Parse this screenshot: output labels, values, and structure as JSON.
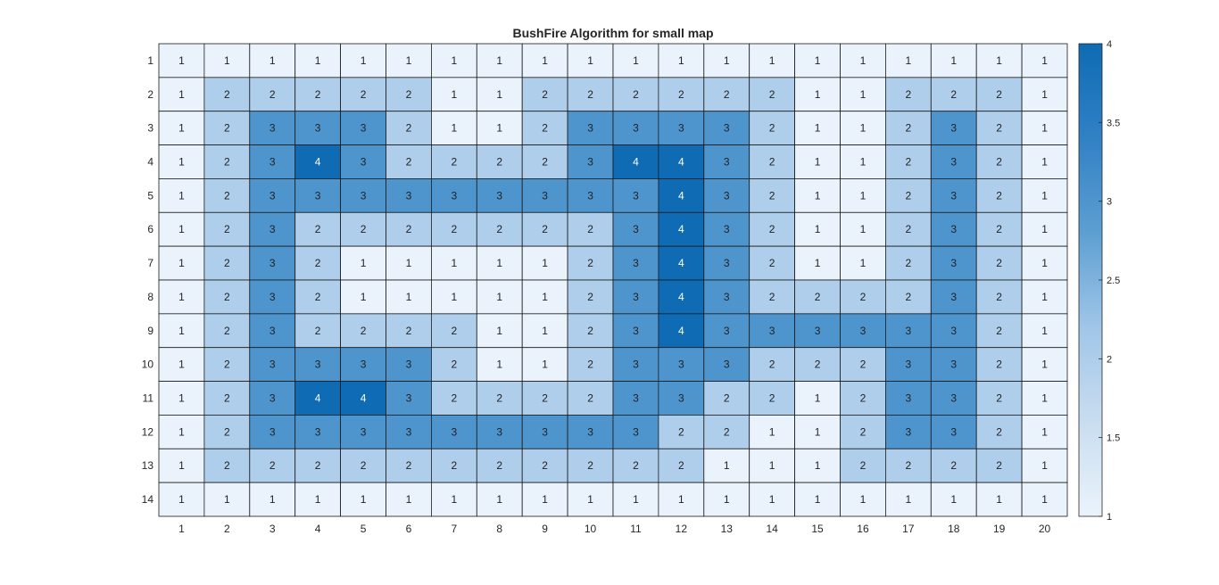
{
  "chart_data": {
    "type": "heatmap",
    "title": "BushFire Algorithm for small map",
    "xlabel": "",
    "ylabel": "",
    "x_categories": [
      "1",
      "2",
      "3",
      "4",
      "5",
      "6",
      "7",
      "8",
      "9",
      "10",
      "11",
      "12",
      "13",
      "14",
      "15",
      "16",
      "17",
      "18",
      "19",
      "20"
    ],
    "y_categories": [
      "1",
      "2",
      "3",
      "4",
      "5",
      "6",
      "7",
      "8",
      "9",
      "10",
      "11",
      "12",
      "13",
      "14"
    ],
    "values": [
      [
        1,
        1,
        1,
        1,
        1,
        1,
        1,
        1,
        1,
        1,
        1,
        1,
        1,
        1,
        1,
        1,
        1,
        1,
        1,
        1
      ],
      [
        1,
        2,
        2,
        2,
        2,
        2,
        1,
        1,
        2,
        2,
        2,
        2,
        2,
        2,
        1,
        1,
        2,
        2,
        2,
        1
      ],
      [
        1,
        2,
        3,
        3,
        3,
        2,
        1,
        1,
        2,
        3,
        3,
        3,
        3,
        2,
        1,
        1,
        2,
        3,
        2,
        1
      ],
      [
        1,
        2,
        3,
        4,
        3,
        2,
        2,
        2,
        2,
        3,
        4,
        4,
        3,
        2,
        1,
        1,
        2,
        3,
        2,
        1
      ],
      [
        1,
        2,
        3,
        3,
        3,
        3,
        3,
        3,
        3,
        3,
        3,
        4,
        3,
        2,
        1,
        1,
        2,
        3,
        2,
        1
      ],
      [
        1,
        2,
        3,
        2,
        2,
        2,
        2,
        2,
        2,
        2,
        3,
        4,
        3,
        2,
        1,
        1,
        2,
        3,
        2,
        1
      ],
      [
        1,
        2,
        3,
        2,
        1,
        1,
        1,
        1,
        1,
        2,
        3,
        4,
        3,
        2,
        1,
        1,
        2,
        3,
        2,
        1
      ],
      [
        1,
        2,
        3,
        2,
        1,
        1,
        1,
        1,
        1,
        2,
        3,
        4,
        3,
        2,
        2,
        2,
        2,
        3,
        2,
        1
      ],
      [
        1,
        2,
        3,
        2,
        2,
        2,
        2,
        1,
        1,
        2,
        3,
        4,
        3,
        3,
        3,
        3,
        3,
        3,
        2,
        1
      ],
      [
        1,
        2,
        3,
        3,
        3,
        3,
        2,
        1,
        1,
        2,
        3,
        3,
        3,
        2,
        2,
        2,
        3,
        3,
        2,
        1
      ],
      [
        1,
        2,
        3,
        4,
        4,
        3,
        2,
        2,
        2,
        2,
        3,
        3,
        2,
        2,
        1,
        2,
        3,
        3,
        2,
        1
      ],
      [
        1,
        2,
        3,
        3,
        3,
        3,
        3,
        3,
        3,
        3,
        3,
        2,
        2,
        1,
        1,
        2,
        3,
        3,
        2,
        1
      ],
      [
        1,
        2,
        2,
        2,
        2,
        2,
        2,
        2,
        2,
        2,
        2,
        2,
        1,
        1,
        1,
        2,
        2,
        2,
        2,
        1
      ],
      [
        1,
        1,
        1,
        1,
        1,
        1,
        1,
        1,
        1,
        1,
        1,
        1,
        1,
        1,
        1,
        1,
        1,
        1,
        1,
        1
      ]
    ],
    "color_range": [
      1,
      4
    ],
    "colorbar_ticks": [
      "1",
      "1.5",
      "2",
      "2.5",
      "3",
      "3.5",
      "4"
    ],
    "colormap": {
      "low": "#eaf3fb",
      "high": "#0e6bb4",
      "stops": [
        "#eaf3fb",
        "#c9ddf0",
        "#a0c6e8",
        "#5d9fd2",
        "#3181c5",
        "#0e6bb4"
      ]
    },
    "cell_text_dark": "#222222",
    "cell_text_light": "#ffffff",
    "grid": true,
    "legend": "colorbar-right"
  }
}
